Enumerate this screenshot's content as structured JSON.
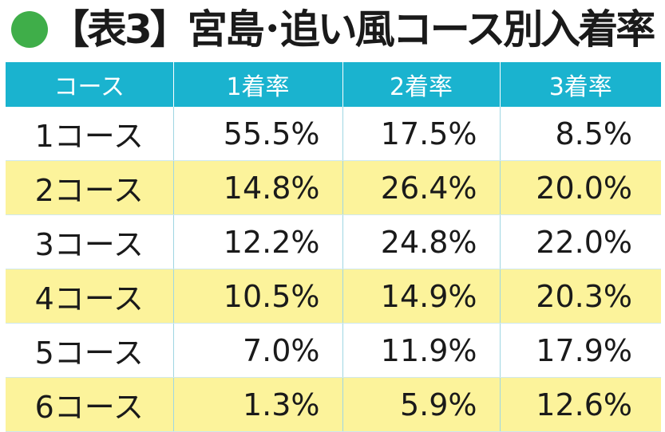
{
  "title": "【表3】宮島･追い風コース別入着率",
  "chart_data": {
    "type": "table",
    "title": "【表3】宮島･追い風コース別入着率",
    "columns": [
      "コース",
      "1着率",
      "2着率",
      "3着率"
    ],
    "rows": [
      [
        "1コース",
        "55.5%",
        "17.5%",
        "8.5%"
      ],
      [
        "2コース",
        "14.8%",
        "26.4%",
        "20.0%"
      ],
      [
        "3コース",
        "12.2%",
        "24.8%",
        "22.0%"
      ],
      [
        "4コース",
        "10.5%",
        "14.9%",
        "20.3%"
      ],
      [
        "5コース",
        "7.0%",
        "11.9%",
        "17.9%"
      ],
      [
        "6コース",
        "1.3%",
        "5.9%",
        "12.6%"
      ]
    ]
  },
  "colors": {
    "header_bg": "#1ab3cf",
    "stripe_bg": "#fcf39b",
    "dot": "#3fae49"
  }
}
